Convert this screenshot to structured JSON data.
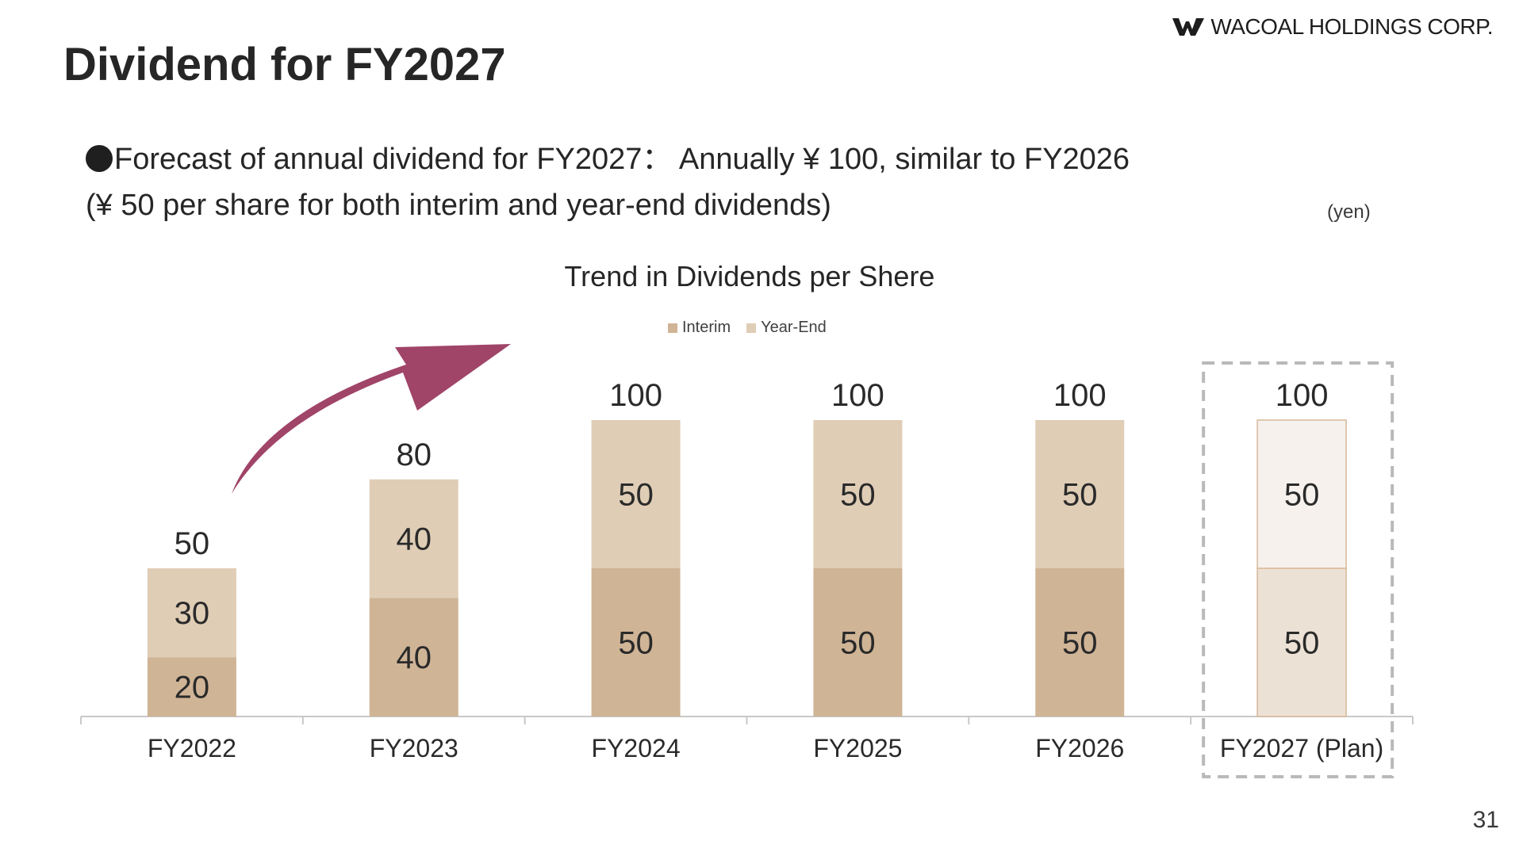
{
  "header": {
    "company": "WACOAL HOLDINGS CORP.",
    "title": "Dividend for FY2027"
  },
  "summary": {
    "line1": "Forecast of annual dividend for FY2027： Annually ¥ 100, similar to FY2026",
    "line2": "(¥ 50 per share for both interim and year-end dividends)"
  },
  "unit_label": "(yen)",
  "page_number": "31",
  "colors": {
    "interim": "#cfb496",
    "year_end": "#e0cdb6",
    "plan_interim": "#ece1d5",
    "plan_year_end": "#f6f1ec",
    "plan_border": "#d9b99a",
    "arrow": "#a04468",
    "dashed_box": "#b9b9b9",
    "axis": "#c8c8c8"
  },
  "chart_data": {
    "type": "bar",
    "stacked": true,
    "title": "Trend in Dividends per Shere",
    "categories": [
      "FY2022",
      "FY2023",
      "FY2024",
      "FY2025",
      "FY2026",
      "FY2027 (Plan)"
    ],
    "series": [
      {
        "name": "Interim",
        "values": [
          20,
          40,
          50,
          50,
          50,
          50
        ]
      },
      {
        "name": "Year-End",
        "values": [
          30,
          40,
          50,
          50,
          50,
          50
        ]
      }
    ],
    "totals": [
      50,
      80,
      100,
      100,
      100,
      100
    ],
    "ylim": [
      0,
      100
    ],
    "grid": false,
    "legend_position": "top-center",
    "highlighted_category": "FY2027 (Plan)",
    "annotation": "upward-arrow"
  }
}
